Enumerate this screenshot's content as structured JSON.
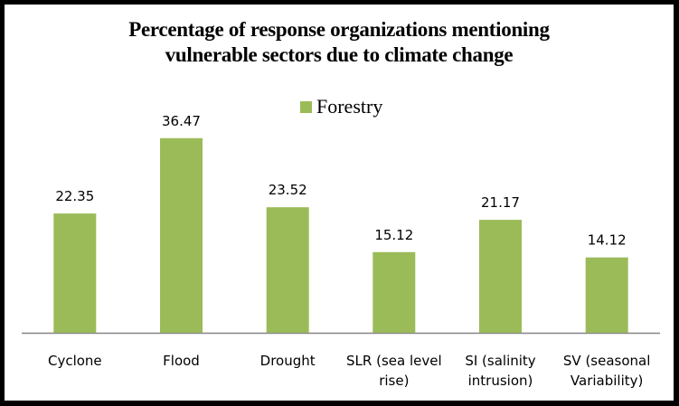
{
  "chart_data": {
    "type": "bar",
    "title": "Percentage of response organizations mentioning vulnerable sectors due to climate change",
    "title_lines": [
      "Percentage of response organizations mentioning",
      "vulnerable sectors due to climate change"
    ],
    "categories": [
      "Cyclone",
      "Flood",
      "Drought",
      "SLR (sea level rise)",
      "SI (salinity intrusion)",
      "SV (seasonal Variability)"
    ],
    "category_lines": [
      [
        "Cyclone"
      ],
      [
        "Flood"
      ],
      [
        "Drought"
      ],
      [
        "SLR (sea level",
        "rise)"
      ],
      [
        "SI (salinity",
        "intrusion)"
      ],
      [
        "SV (seasonal",
        "Variability)"
      ]
    ],
    "series": [
      {
        "name": "Forestry",
        "color": "#9bbb59",
        "values": [
          22.35,
          36.47,
          23.52,
          15.12,
          21.17,
          14.12
        ]
      }
    ],
    "data_labels": [
      "22.35",
      "36.47",
      "23.52",
      "15.12",
      "21.17",
      "14.12"
    ],
    "xlabel": "",
    "ylabel": "",
    "ylim": [
      0,
      40
    ],
    "y_axis_visible": false,
    "grid": false,
    "legend": {
      "position": "top-center",
      "entries": [
        "Forestry"
      ]
    },
    "axis_color": "#868686"
  }
}
